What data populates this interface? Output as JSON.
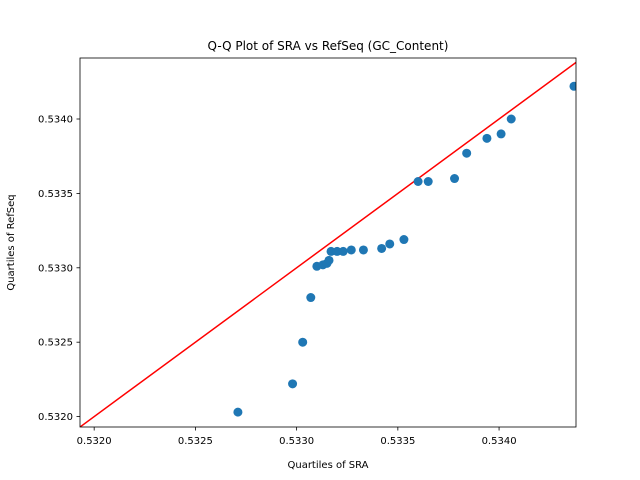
{
  "chart_data": {
    "type": "scatter",
    "title": "Q-Q Plot of SRA vs RefSeq (GC_Content)",
    "xlabel": "Quartiles of SRA",
    "ylabel": "Quartiles of RefSeq",
    "xlim": [
      0.53193,
      0.53438
    ],
    "ylim": [
      0.53193,
      0.53441
    ],
    "xticks": [
      0.532,
      0.5325,
      0.533,
      0.5335,
      0.534
    ],
    "xtick_labels": [
      "0.5320",
      "0.5325",
      "0.5330",
      "0.5335",
      "0.5340"
    ],
    "yticks": [
      0.532,
      0.5325,
      0.533,
      0.5335,
      0.534
    ],
    "ytick_labels": [
      "0.5320",
      "0.5325",
      "0.5330",
      "0.5335",
      "0.5340"
    ],
    "grid": false,
    "marker_color": "#1f77b4",
    "reference_line": {
      "from": [
        0.5319,
        0.5319
      ],
      "to": [
        0.5345,
        0.5345
      ],
      "color": "#ff0000"
    },
    "points": [
      [
        0.53271,
        0.53203
      ],
      [
        0.53298,
        0.53222
      ],
      [
        0.53303,
        0.5325
      ],
      [
        0.53307,
        0.5328
      ],
      [
        0.5331,
        0.53301
      ],
      [
        0.53313,
        0.53302
      ],
      [
        0.53315,
        0.53303
      ],
      [
        0.53316,
        0.53305
      ],
      [
        0.53317,
        0.53311
      ],
      [
        0.5332,
        0.53311
      ],
      [
        0.53323,
        0.53311
      ],
      [
        0.53327,
        0.53312
      ],
      [
        0.53333,
        0.53312
      ],
      [
        0.53342,
        0.53313
      ],
      [
        0.53346,
        0.53316
      ],
      [
        0.53353,
        0.53319
      ],
      [
        0.5336,
        0.53358
      ],
      [
        0.53365,
        0.53358
      ],
      [
        0.53378,
        0.5336
      ],
      [
        0.53384,
        0.53377
      ],
      [
        0.53394,
        0.53387
      ],
      [
        0.53401,
        0.5339
      ],
      [
        0.53406,
        0.534
      ],
      [
        0.53437,
        0.53422
      ]
    ]
  }
}
